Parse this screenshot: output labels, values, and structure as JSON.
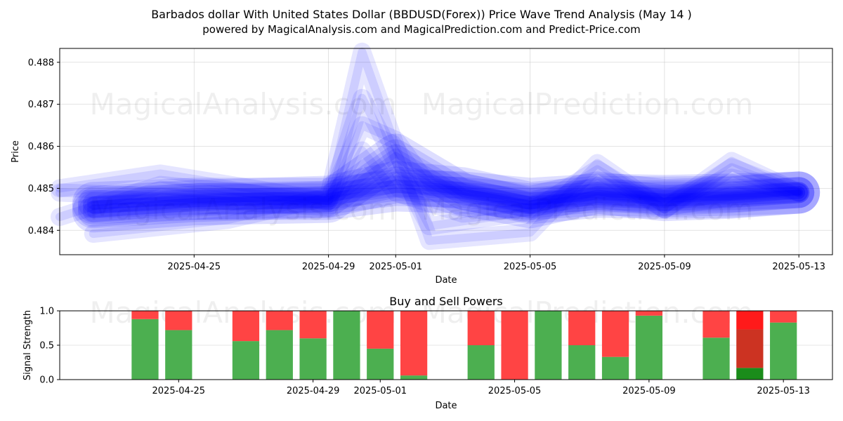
{
  "chart_data": [
    {
      "type": "line",
      "title": "Barbados dollar With United States Dollar (BBDUSD(Forex)) Price Wave Trend Analysis (May 14 )",
      "subtitle": "powered by MagicalAnalysis.com and MagicalPrediction.com and Predict-Price.com",
      "xlabel": "Date",
      "ylabel": "Price",
      "xlim": [
        "2025-04-21",
        "2025-05-14"
      ],
      "ylim": [
        0.48342,
        0.48833
      ],
      "x_ticks": [
        "2025-04-25",
        "2025-04-29",
        "2025-05-01",
        "2025-05-05",
        "2025-05-09",
        "2025-05-13"
      ],
      "y_ticks": [
        "0.484",
        "0.485",
        "0.486",
        "0.487",
        "0.488"
      ],
      "grid": true,
      "watermarks": [
        "MagicalAnalysis.com",
        "MagicalPrediction.com"
      ],
      "color": "#0000ff",
      "series": [
        {
          "x": [
            "2025-04-22",
            "2025-04-25",
            "2025-04-29",
            "2025-05-01",
            "2025-05-03",
            "2025-05-05",
            "2025-05-07",
            "2025-05-09",
            "2025-05-11",
            "2025-05-13"
          ],
          "values": [
            0.48465,
            0.48475,
            0.48475,
            0.48495,
            0.4849,
            0.48475,
            0.48485,
            0.48482,
            0.48485,
            0.4849
          ]
        },
        {
          "x": [
            "2025-04-22",
            "2025-04-25",
            "2025-04-29",
            "2025-05-01",
            "2025-05-03",
            "2025-05-05",
            "2025-05-07",
            "2025-05-09",
            "2025-05-11",
            "2025-05-13"
          ],
          "values": [
            0.48455,
            0.4847,
            0.4848,
            0.48515,
            0.485,
            0.48465,
            0.4848,
            0.48478,
            0.4848,
            0.4849
          ]
        },
        {
          "x": [
            "2025-04-22",
            "2025-04-25",
            "2025-04-29",
            "2025-05-01",
            "2025-05-03",
            "2025-05-05",
            "2025-05-07",
            "2025-05-09",
            "2025-05-11",
            "2025-05-13"
          ],
          "values": [
            0.48445,
            0.48462,
            0.48468,
            0.4858,
            0.48485,
            0.48455,
            0.4849,
            0.48472,
            0.48478,
            0.4849
          ]
        },
        {
          "x": [
            "2025-04-21",
            "2025-04-24",
            "2025-04-29",
            "2025-04-30",
            "2025-05-01",
            "2025-05-02",
            "2025-05-05",
            "2025-05-07",
            "2025-05-09",
            "2025-05-11",
            "2025-05-13"
          ],
          "values": [
            0.48432,
            0.48508,
            0.4847,
            0.4865,
            0.48615,
            0.48505,
            0.4846,
            0.48505,
            0.48475,
            0.48525,
            0.4849
          ]
        },
        {
          "x": [
            "2025-04-21",
            "2025-04-24",
            "2025-04-29",
            "2025-04-30",
            "2025-05-02",
            "2025-05-05",
            "2025-05-07",
            "2025-05-09",
            "2025-05-11",
            "2025-05-13"
          ],
          "values": [
            0.485,
            0.48535,
            0.4847,
            0.48715,
            0.4841,
            0.48445,
            0.48545,
            0.4845,
            0.4855,
            0.4849
          ]
        },
        {
          "x": [
            "2025-04-22",
            "2025-04-26",
            "2025-04-29",
            "2025-04-30",
            "2025-05-02",
            "2025-05-05",
            "2025-05-07",
            "2025-05-09",
            "2025-05-11",
            "2025-05-13"
          ],
          "values": [
            0.48392,
            0.48425,
            0.4848,
            0.48825,
            0.48375,
            0.48395,
            0.4856,
            0.4845,
            0.48565,
            0.4849
          ]
        },
        {
          "x": [
            "2025-04-21",
            "2025-04-24",
            "2025-04-29",
            "2025-04-30",
            "2025-05-01",
            "2025-05-03",
            "2025-05-05",
            "2025-05-07",
            "2025-05-09",
            "2025-05-11",
            "2025-05-13"
          ],
          "values": [
            0.4849,
            0.4848,
            0.48455,
            0.4859,
            0.4849,
            0.4844,
            0.48455,
            0.4847,
            0.48455,
            0.4848,
            0.4849
          ]
        }
      ]
    },
    {
      "type": "bar",
      "title": "Buy and Sell Powers",
      "xlabel": "Date",
      "ylabel": "Signal Strength",
      "ylim": [
        0,
        1.0
      ],
      "y_ticks": [
        "0.0",
        "0.5",
        "1.0"
      ],
      "x_ticks": [
        "2025-04-25",
        "2025-04-29",
        "2025-05-01",
        "2025-05-05",
        "2025-05-09",
        "2025-05-13"
      ],
      "grid": true,
      "colors": {
        "buy": "#4caf50",
        "sell": "#ff4444"
      },
      "dates": [
        "2025-04-24",
        "2025-04-25",
        "2025-04-27",
        "2025-04-28",
        "2025-04-29",
        "2025-04-30",
        "2025-05-01",
        "2025-05-02",
        "2025-05-04",
        "2025-05-05",
        "2025-05-06",
        "2025-05-07",
        "2025-05-08",
        "2025-05-09",
        "2025-05-11",
        "2025-05-12",
        "2025-05-13"
      ],
      "series": [
        {
          "values": [
            0.88,
            0.72,
            0.56,
            0.72,
            0.6,
            1.0,
            0.45,
            0.06,
            0.5,
            0.0,
            1.0,
            0.5,
            0.33,
            0.93,
            0.61,
            0.73,
            0.83
          ]
        },
        {
          "values": [
            0.12,
            0.28,
            0.44,
            0.28,
            0.4,
            0.0,
            0.55,
            0.94,
            0.5,
            1.0,
            0.0,
            0.5,
            0.67,
            0.07,
            0.39,
            0.27,
            0.17
          ]
        }
      ],
      "highlight": {
        "date": "2025-05-12",
        "lower_value": 0.17,
        "lower_color": "#1a8c1a",
        "middle_color": "#cc3322",
        "upper_color": "#ff1a1a"
      }
    }
  ]
}
